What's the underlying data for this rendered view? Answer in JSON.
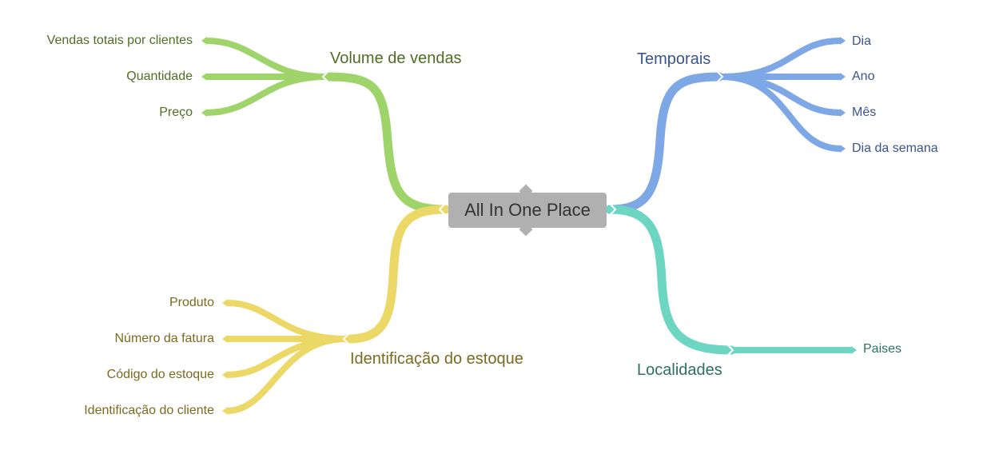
{
  "colors": {
    "green": "#9fd46a",
    "green_text": "#4f6e23",
    "blue": "#7ea7e6",
    "blue_text": "#3a5490",
    "yellow": "#ecd866",
    "yellow_text": "#7a6a1e",
    "teal": "#6dd6c3",
    "teal_text": "#2e6f64",
    "center_bg": "#b0b0b0"
  },
  "center": {
    "label": "All In One Place"
  },
  "branches": {
    "volume": {
      "label": "Volume de vendas",
      "items": [
        "Vendas totais por clientes",
        "Quantidade",
        "Preço"
      ]
    },
    "temporais": {
      "label": "Temporais",
      "items": [
        "Dia",
        "Ano",
        "Mês",
        "Dia da semana"
      ]
    },
    "estoque": {
      "label": "Identificação do estoque",
      "items": [
        "Produto",
        "Número da fatura",
        "Código do estoque",
        "Identificação do cliente"
      ]
    },
    "localidades": {
      "label": "Localidades",
      "items": [
        "Paises"
      ]
    }
  }
}
